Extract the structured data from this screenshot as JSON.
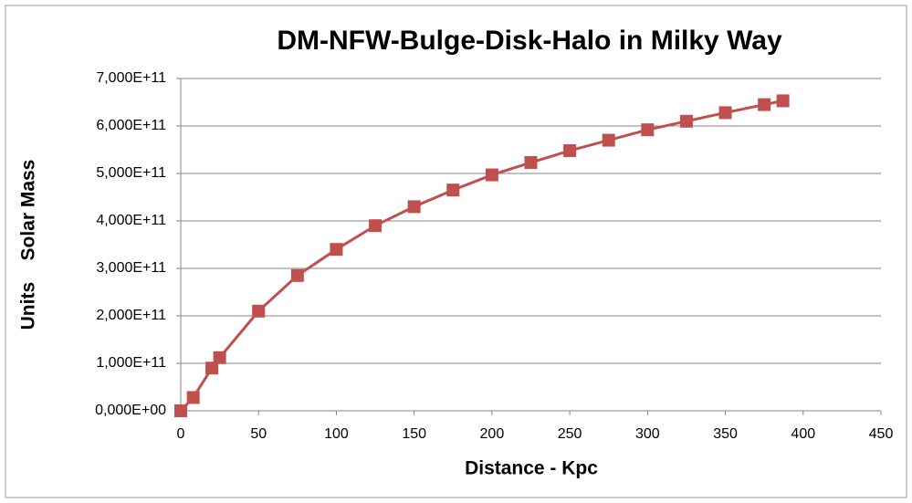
{
  "chart_data": {
    "type": "line",
    "title": "DM-NFW-Bulge-Disk-Halo in Milky Way",
    "xlabel": "Distance - Kpc",
    "ylabel": "Units    Solar Mass",
    "series": [
      {
        "name": "DM-NFW-Bulge-Disk-Halo",
        "color": "#c0504d",
        "x": [
          0,
          8,
          20,
          25,
          50,
          75,
          100,
          125,
          150,
          175,
          200,
          225,
          250,
          275,
          300,
          325,
          350,
          375,
          387
        ],
        "values": [
          0,
          28000000000,
          90000000000,
          112000000000,
          210000000000,
          285000000000,
          340000000000,
          390000000000,
          430000000000,
          465000000000,
          497000000000,
          523000000000,
          548000000000,
          570000000000,
          592000000000,
          610000000000,
          628000000000,
          645000000000,
          653000000000
        ]
      }
    ],
    "xlim": [
      0,
      450
    ],
    "xticks": [
      0,
      50,
      100,
      150,
      200,
      250,
      300,
      350,
      400,
      450
    ],
    "ylim": [
      0,
      700000000000
    ],
    "yticks": [
      {
        "value": 0,
        "label": "0,000E+00"
      },
      {
        "value": 100000000000,
        "label": "1,000E+11"
      },
      {
        "value": 200000000000,
        "label": "2,000E+11"
      },
      {
        "value": 300000000000,
        "label": "3,000E+11"
      },
      {
        "value": 400000000000,
        "label": "4,000E+11"
      },
      {
        "value": 500000000000,
        "label": "5,000E+11"
      },
      {
        "value": 600000000000,
        "label": "6,000E+11"
      },
      {
        "value": 700000000000,
        "label": "7,000E+11"
      }
    ],
    "grid": true
  }
}
